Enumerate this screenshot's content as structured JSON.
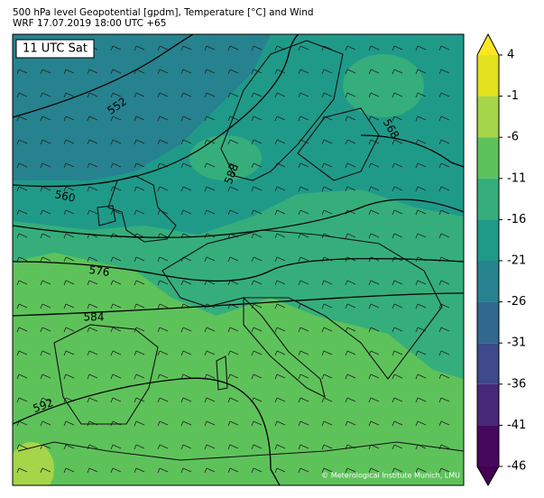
{
  "header": {
    "title": "500 hPa level Geopotential [gpdm], Temperature [°C] and Wind",
    "subtitle": "WRF 17.07.2019 18:00 UTC +65"
  },
  "map": {
    "time_label": "11 UTC Sat",
    "copyright": "© Meterological Institute Munich, LMU",
    "contour_labels": [
      552,
      560,
      568,
      576,
      584,
      588,
      592
    ]
  },
  "colorbar": {
    "ticks": [
      4,
      -1,
      -6,
      -11,
      -16,
      -21,
      -26,
      -31,
      -36,
      -41,
      -46
    ],
    "colors": [
      "#e3e11d",
      "#a5d548",
      "#5ec25a",
      "#35ae7c",
      "#1f9a89",
      "#26828e",
      "#31688e",
      "#3e4a89",
      "#482878",
      "#46085c"
    ],
    "extend_colors": [
      "#fde725",
      "#440154"
    ]
  }
}
